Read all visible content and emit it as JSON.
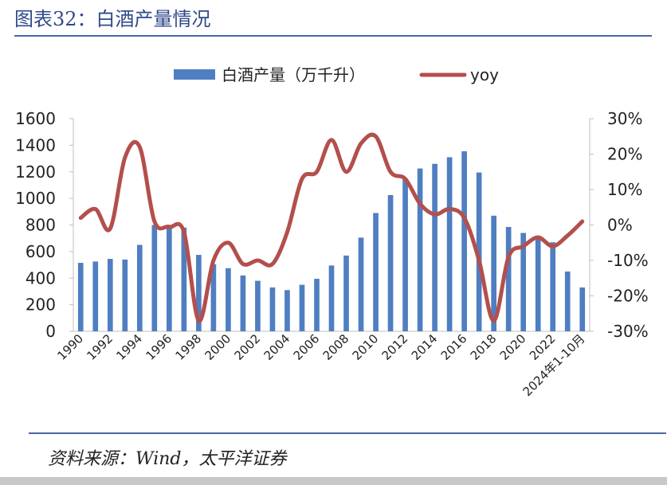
{
  "header": {
    "title": "图表32：白酒产量情况"
  },
  "footer": {
    "source": "资料来源：Wind，太平洋证券"
  },
  "colors": {
    "bar": "#4f7ec1",
    "line": "#b34f4c",
    "axis": "#bfbfbf",
    "title": "#2f4a8a"
  },
  "chart_data": {
    "type": "bar+line",
    "title": "",
    "legend_position": "top-center",
    "grid": false,
    "categories": [
      "1990",
      "1991",
      "1992",
      "1993",
      "1994",
      "1995",
      "1996",
      "1997",
      "1998",
      "1999",
      "2000",
      "2001",
      "2002",
      "2003",
      "2004",
      "2005",
      "2006",
      "2007",
      "2008",
      "2009",
      "2010",
      "2011",
      "2012",
      "2013",
      "2014",
      "2015",
      "2016",
      "2017",
      "2018",
      "2019",
      "2020",
      "2021",
      "2022",
      "2023",
      "2024年1-10月"
    ],
    "x_tick_labels": [
      "1990",
      "1992",
      "1994",
      "1996",
      "1998",
      "2000",
      "2002",
      "2004",
      "2006",
      "2008",
      "2010",
      "2012",
      "2014",
      "2016",
      "2018",
      "2020",
      "2022",
      "2024年1-10月"
    ],
    "series": [
      {
        "name": "白酒产量（万千升）",
        "type": "bar",
        "axis": "left",
        "values": [
          515,
          525,
          545,
          540,
          650,
          800,
          800,
          780,
          575,
          505,
          475,
          420,
          380,
          330,
          310,
          350,
          395,
          495,
          570,
          705,
          890,
          1025,
          1150,
          1225,
          1260,
          1310,
          1355,
          1195,
          870,
          785,
          740,
          715,
          670,
          450,
          330
        ]
      },
      {
        "name": "yoy",
        "type": "line",
        "axis": "right",
        "values": [
          2,
          4.5,
          -1,
          19,
          22,
          1,
          -0.5,
          -2,
          -27,
          -10,
          -5,
          -11,
          -10,
          -11,
          -2,
          13,
          15,
          24,
          15,
          23,
          25,
          15,
          13,
          6,
          3,
          4.5,
          2,
          -10,
          -27,
          -9,
          -6,
          -3.5,
          -6,
          -3,
          1
        ]
      }
    ],
    "y_left": {
      "label": "",
      "ticks": [
        "0",
        "200",
        "400",
        "600",
        "800",
        "1000",
        "1200",
        "1400",
        "1600"
      ],
      "ylim": [
        0,
        1600
      ]
    },
    "y_right": {
      "label": "",
      "ticks": [
        "-30%",
        "-20%",
        "-10%",
        "0%",
        "10%",
        "20%",
        "30%"
      ],
      "ylim": [
        -30,
        30
      ]
    }
  }
}
